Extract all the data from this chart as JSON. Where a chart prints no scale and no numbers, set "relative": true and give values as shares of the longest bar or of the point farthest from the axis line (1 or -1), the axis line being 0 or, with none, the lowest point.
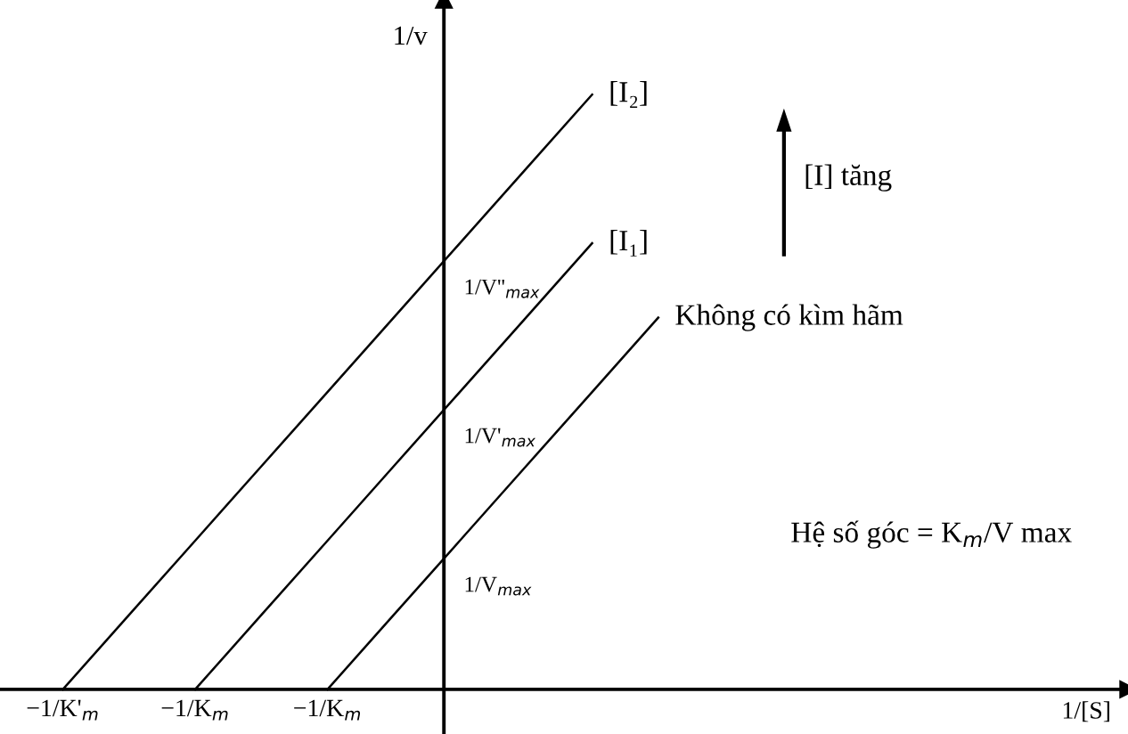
{
  "chart_data": {
    "type": "line",
    "relative": true,
    "xlabel": "1/[S]",
    "ylabel": "1/v",
    "legend": false,
    "grid": false,
    "marker": "none",
    "line_style": "solid",
    "categories": [
      "−1/K'$_{m}$",
      null,
      "−1/K$_{m}$",
      null,
      "−1/K$_{m}$",
      null,
      null,
      null,
      null,
      null,
      null,
      null,
      null,
      null,
      null,
      null,
      null
    ],
    "series": [
      {
        "name": "[I₂]",
        "color": "#000000",
        "values": [
          0,
          0.125,
          0.25,
          0.375,
          0.5,
          0.625,
          0.75,
          0.875,
          1,
          null,
          null,
          null,
          null,
          null,
          null,
          null,
          null
        ]
      },
      {
        "name": "[I₁]",
        "color": "#000000",
        "values": [
          null,
          null,
          0,
          0.125,
          0.25,
          0.375,
          0.5,
          0.625,
          0.75,
          null,
          null,
          null,
          null,
          null,
          null,
          null,
          null
        ]
      },
      {
        "name": "Không có kìm hãm",
        "color": "#000000",
        "values": [
          null,
          null,
          null,
          null,
          0,
          0.125,
          0.25,
          0.375,
          0.5,
          0.625,
          null,
          null,
          null,
          null,
          null,
          null,
          null
        ]
      }
    ],
    "annotations": [
      "1/V''$_{max}$",
      "1/V'$_{max}$",
      "1/V$_{max}$",
      "[I] tăng",
      "Hệ số góc = K$_{m}$/V max"
    ]
  }
}
